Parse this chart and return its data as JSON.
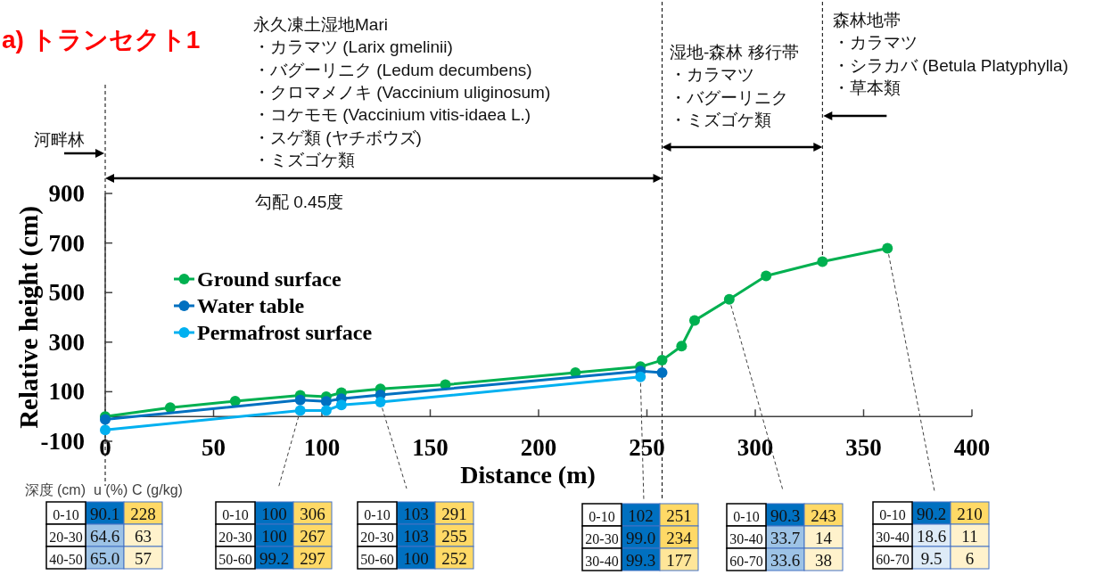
{
  "chart_data": [
    {
      "type": "line",
      "title": "a) トランセクト1",
      "xlabel": "Distance (m)",
      "ylabel": "Relative height (cm)",
      "xlim": [
        0,
        400
      ],
      "xticks": [
        0,
        50,
        100,
        150,
        200,
        250,
        300,
        350,
        400
      ],
      "ylim": [
        -100,
        900
      ],
      "yticks": [
        -100,
        100,
        300,
        500,
        700,
        900
      ],
      "marker": "circle",
      "legend": "left",
      "series": [
        {
          "name": "Ground surface",
          "color": "#00b050",
          "x": [
            0,
            30,
            60,
            90,
            102,
            109,
            127,
            157,
            217,
            247,
            257,
            266,
            272,
            288,
            305,
            331,
            361
          ],
          "values": [
            0,
            36,
            62,
            85,
            80,
            96,
            111,
            128,
            177,
            201,
            227,
            284,
            387,
            473,
            567,
            625,
            679
          ]
        },
        {
          "name": "Water table",
          "color": "#0070c0",
          "x": [
            0,
            90,
            102,
            109,
            127,
            247,
            257
          ],
          "values": [
            -12,
            66,
            61,
            72,
            87,
            183,
            177
          ]
        },
        {
          "name": "Permafrost surface",
          "color": "#00b0f0",
          "x": [
            0,
            90,
            102,
            109,
            127,
            247
          ],
          "values": [
            -54,
            24,
            24,
            47,
            58,
            160
          ]
        }
      ],
      "ref_lines": [
        {
          "axis": "x",
          "value": 0,
          "line_style": "dashed"
        },
        {
          "axis": "x",
          "value": 257,
          "line_style": "dashed"
        },
        {
          "axis": "x",
          "value": 331,
          "line_style": "dashed"
        }
      ],
      "annotations": [
        "永久凍土湿地Mari",
        "・カラマツ (Larix gmelinii)",
        "・バグーリニク (Ledum decumbens)",
        "・クロマメノキ (Vaccinium uliginosum)",
        "・コケモモ (Vaccinium vitis-idaea L.)",
        "・スゲ類 (ヤチボウズ)",
        "・ミズゴケ類",
        "河畔林",
        "湿地-森林 移行帯",
        "・カラマツ",
        "・バグーリニク",
        "・ミズゴケ類",
        "森林地帯",
        "・カラマツ",
        "・シラカバ (Betula Platyphylla)",
        "・草本類",
        "勾配 0.45度"
      ]
    },
    {
      "type": "heatmap",
      "ylabel": "深度 (cm)",
      "categories": [
        "u (%)",
        "C (g/kg)"
      ],
      "y_categories": [
        "0-10",
        "20-30",
        "40-50"
      ],
      "cells": [
        [
          90.1,
          228
        ],
        [
          64.6,
          63
        ],
        [
          65.0,
          57
        ]
      ],
      "cell_labels": [
        [
          "90.1",
          "228"
        ],
        [
          "64.6",
          "63"
        ],
        [
          "65.0",
          "57"
        ]
      ],
      "colors": [
        [
          "#0070c0",
          "#ffd966"
        ],
        [
          "#9dc3e6",
          "#fff2cc"
        ],
        [
          "#9dc3e6",
          "#fff2cc"
        ]
      ]
    },
    {
      "type": "other",
      "categories": [
        "0-10",
        "20-30",
        "50-60"
      ],
      "data_labels": true,
      "series": [
        {
          "values": [
            100,
            100,
            99.2
          ],
          "colors": [
            "#0070c0",
            "#0070c0",
            "#0070c0"
          ]
        },
        {
          "values": [
            306,
            267,
            297
          ],
          "colors": [
            "#ffd966",
            "#ffd966",
            "#ffd966"
          ]
        }
      ]
    },
    {
      "type": "other",
      "categories": [
        "0-10",
        "20-30",
        "50-60"
      ],
      "data_labels": true,
      "series": [
        {
          "values": [
            103,
            103,
            100
          ],
          "colors": [
            "#0070c0",
            "#0070c0",
            "#0070c0"
          ]
        },
        {
          "values": [
            291,
            255,
            252
          ],
          "colors": [
            "#ffd966",
            "#ffd966",
            "#ffd966"
          ]
        }
      ]
    },
    {
      "type": "other",
      "categories": [
        "0-10",
        "20-30",
        "30-40"
      ],
      "series": [
        {
          "values": [
            102,
            99.0,
            99.3
          ],
          "value_labels": [
            "102",
            "99.0",
            "99.3"
          ],
          "colors": [
            "#0070c0",
            "#0070c0",
            "#0070c0"
          ]
        },
        {
          "values": [
            251,
            234,
            177
          ],
          "value_labels": [
            "251",
            "234",
            "177"
          ],
          "colors": [
            "#ffd966",
            "#ffd966",
            "#ffe699"
          ]
        }
      ]
    },
    {
      "type": "other",
      "categories": [
        "0-10",
        "30-40",
        "60-70"
      ],
      "data_labels": true,
      "series": [
        {
          "values": [
            90.3,
            33.7,
            33.6
          ],
          "colors": [
            "#0070c0",
            "#9dc3e6",
            "#9dc3e6"
          ]
        },
        {
          "values": [
            243,
            14,
            38
          ],
          "colors": [
            "#ffd966",
            "#fff2cc",
            "#fff2cc"
          ]
        }
      ]
    },
    {
      "type": "other",
      "categories": [
        "0-10",
        "30-40",
        "60-70"
      ],
      "data_labels": true,
      "series": [
        {
          "values": [
            90.2,
            18.6,
            9.5
          ],
          "colors": [
            "#0070c0",
            "#deebf7",
            "#deebf7"
          ]
        },
        {
          "values": [
            210,
            11,
            6
          ],
          "colors": [
            "#ffd966",
            "#fff2cc",
            "#fff2cc"
          ]
        }
      ]
    }
  ]
}
